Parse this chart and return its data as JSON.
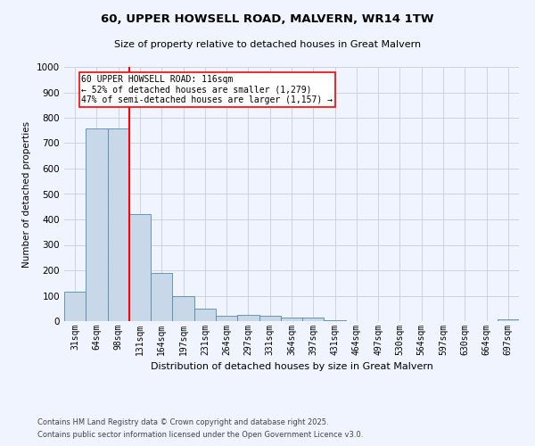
{
  "title1": "60, UPPER HOWSELL ROAD, MALVERN, WR14 1TW",
  "title2": "Size of property relative to detached houses in Great Malvern",
  "xlabel": "Distribution of detached houses by size in Great Malvern",
  "ylabel": "Number of detached properties",
  "bar_labels": [
    "31sqm",
    "64sqm",
    "98sqm",
    "131sqm",
    "164sqm",
    "197sqm",
    "231sqm",
    "264sqm",
    "297sqm",
    "331sqm",
    "364sqm",
    "397sqm",
    "431sqm",
    "464sqm",
    "497sqm",
    "530sqm",
    "564sqm",
    "597sqm",
    "630sqm",
    "664sqm",
    "697sqm"
  ],
  "bar_values": [
    117,
    757,
    757,
    420,
    190,
    97,
    50,
    22,
    23,
    22,
    14,
    15,
    4,
    0,
    0,
    0,
    0,
    0,
    0,
    0,
    8
  ],
  "bar_color": "#c8d8e8",
  "bar_edge_color": "#5588aa",
  "ylim": [
    0,
    1000
  ],
  "yticks": [
    0,
    100,
    200,
    300,
    400,
    500,
    600,
    700,
    800,
    900,
    1000
  ],
  "red_line_x": 2.5,
  "annotation_text": "60 UPPER HOWSELL ROAD: 116sqm\n← 52% of detached houses are smaller (1,279)\n47% of semi-detached houses are larger (1,157) →",
  "footnote1": "Contains HM Land Registry data © Crown copyright and database right 2025.",
  "footnote2": "Contains public sector information licensed under the Open Government Licence v3.0.",
  "bg_color": "#f0f4ff",
  "grid_color": "#c8cce0"
}
